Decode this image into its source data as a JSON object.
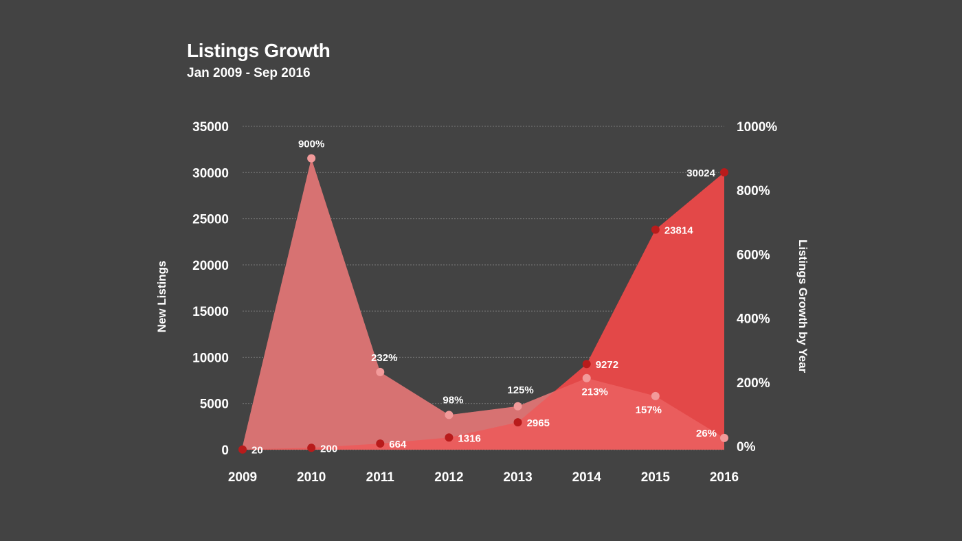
{
  "title": "Listings Growth",
  "subtitle": "Jan 2009 - Sep 2016",
  "colors": {
    "background": "#434343",
    "growth_area": "#b87676",
    "growth_area_front": "#f07070",
    "listings_area": "#e34848",
    "point_dark": "#b81b1b",
    "point_light": "#f29a9a"
  },
  "chart_data": {
    "type": "area",
    "title": "Listings Growth",
    "subtitle": "Jan 2009 - Sep 2016",
    "categories": [
      "2009",
      "2010",
      "2011",
      "2012",
      "2013",
      "2014",
      "2015",
      "2016"
    ],
    "series": [
      {
        "name": "New Listings",
        "axis": "left",
        "values": [
          20,
          200,
          664,
          1316,
          2965,
          9272,
          23814,
          30024
        ],
        "labels": [
          "20",
          "200",
          "664",
          "1316",
          "2965",
          "9272",
          "23814",
          "30024"
        ]
      },
      {
        "name": "Listings Growth by Year",
        "axis": "right",
        "values": [
          0,
          900,
          232,
          98,
          125,
          213,
          157,
          26
        ],
        "labels": [
          "",
          "900%",
          "232%",
          "98%",
          "125%",
          "213%",
          "157%",
          "26%"
        ]
      }
    ],
    "ylabel": "New Listings",
    "ylabel_right": "Listings Growth by Year",
    "ylim": [
      0,
      35000
    ],
    "yticks": [
      "35000",
      "30000",
      "25000",
      "20000",
      "15000",
      "10000",
      "5000",
      "0"
    ],
    "ylim_right": [
      0,
      1000
    ],
    "yticks_right": [
      "1000%",
      "800%",
      "600%",
      "400%",
      "200%",
      "0%"
    ],
    "grid": true,
    "legend": "none"
  }
}
